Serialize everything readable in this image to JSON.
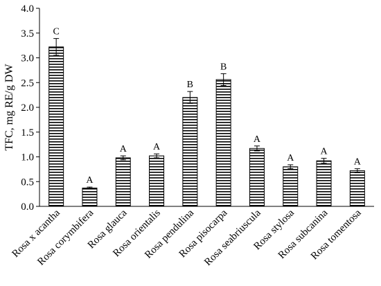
{
  "chart_data": {
    "type": "bar",
    "ylabel": "TFC, mg RE/g DW",
    "ylim": [
      0,
      4.0
    ],
    "yticks": [
      "0.0",
      "0.5",
      "1.0",
      "1.5",
      "2.0",
      "2.5",
      "3.0",
      "3.5",
      "4.0"
    ],
    "grid": false,
    "bar_fill": "horizontal-stripes",
    "colors": {
      "bar_stripe": "#000000",
      "bar_background": "#ffffff",
      "axis": "#000000"
    },
    "categories": [
      "Rosa x acantha",
      "Rosa corymbifera",
      "Rosa glauca",
      "Rosa orientalis",
      "Rosa pendulina",
      "Rosa pisocarpa",
      "Rosa seabriuscula",
      "Rosa stylosa",
      "Rosa subcanina",
      "Rosa tomentosa"
    ],
    "values": [
      3.22,
      0.37,
      0.98,
      1.02,
      2.2,
      2.56,
      1.17,
      0.8,
      0.92,
      0.72
    ],
    "errors": [
      0.17,
      0.02,
      0.04,
      0.04,
      0.12,
      0.12,
      0.05,
      0.04,
      0.05,
      0.04
    ],
    "group_labels": [
      "C",
      "A",
      "A",
      "A",
      "B",
      "B",
      "A",
      "A",
      "A",
      "A"
    ]
  }
}
